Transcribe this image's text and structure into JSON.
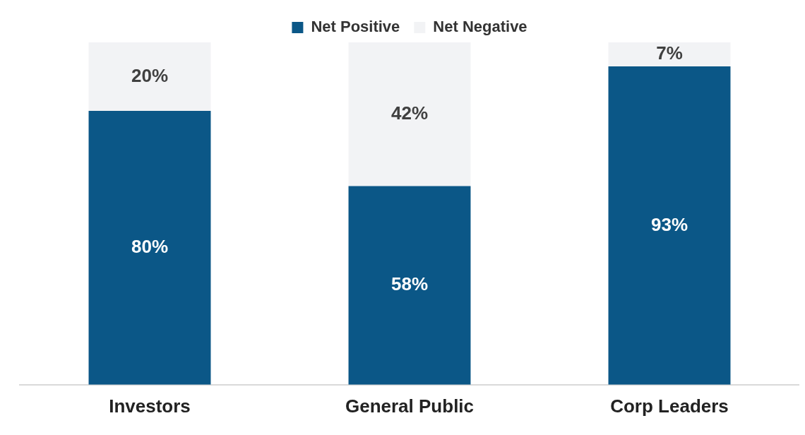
{
  "chart_data": {
    "type": "bar",
    "stacked": true,
    "categories": [
      "Investors",
      "General Public",
      "Corp Leaders"
    ],
    "series": [
      {
        "name": "Net Positive",
        "color": "#0b5787",
        "values": [
          80,
          58,
          93
        ],
        "value_labels": [
          "80%",
          "58%",
          "93%"
        ]
      },
      {
        "name": "Net Negative",
        "color": "#f2f3f5",
        "values": [
          20,
          42,
          7
        ],
        "value_labels": [
          "20%",
          "42%",
          "7%"
        ]
      }
    ],
    "ylim": [
      0,
      100
    ],
    "tick_labels": "x",
    "grid": false,
    "legend": "top"
  }
}
